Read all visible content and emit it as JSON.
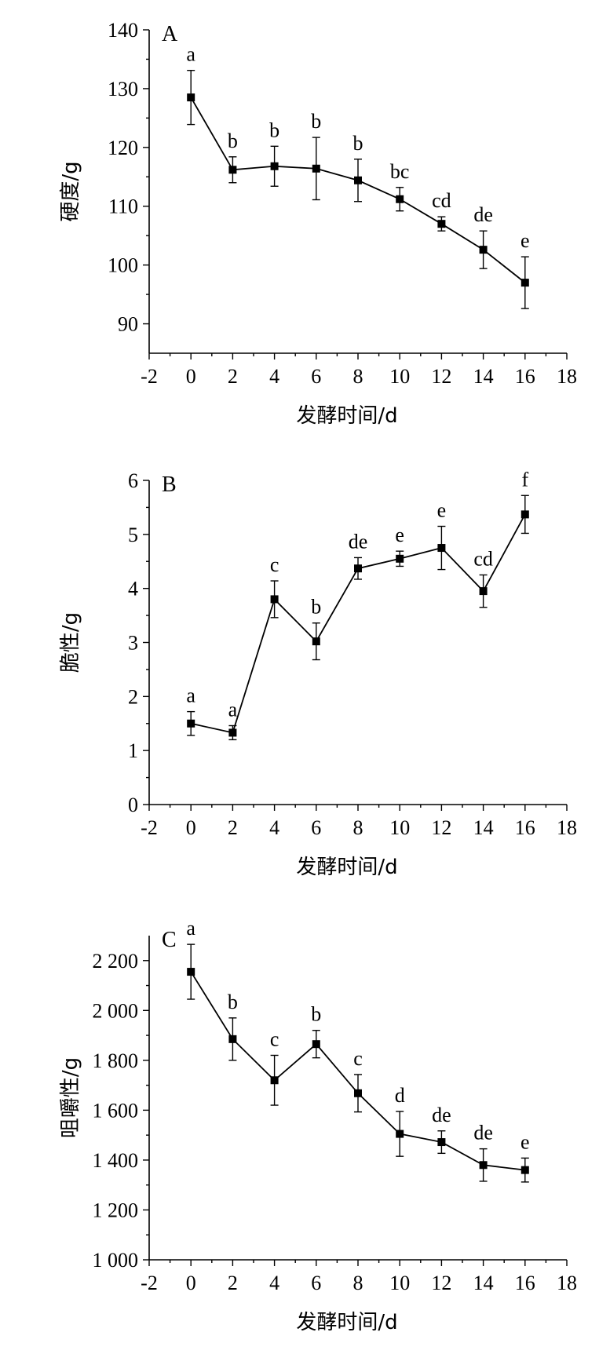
{
  "chart_data": [
    {
      "type": "line",
      "panel_label": "A",
      "xlabel": "发酵时间/d",
      "ylabel": "硬度/g",
      "xlim": [
        -2,
        18
      ],
      "ylim": [
        85,
        140
      ],
      "x_ticks": [
        -2,
        0,
        2,
        4,
        6,
        8,
        10,
        12,
        14,
        16,
        18
      ],
      "x_tick_labels": [
        "-2",
        "0",
        "2",
        "4",
        "6",
        "8",
        "10",
        "12",
        "14",
        "16",
        "18"
      ],
      "y_ticks": [
        90,
        100,
        110,
        120,
        130,
        140
      ],
      "y_tick_labels": [
        "90",
        "100",
        "110",
        "120",
        "130",
        "140"
      ],
      "grid": false,
      "series": [
        {
          "x": [
            0,
            2,
            4,
            6,
            8,
            10,
            12,
            14,
            16
          ],
          "values": [
            128.5,
            116.2,
            116.8,
            116.4,
            114.4,
            111.2,
            107.0,
            102.6,
            97.0
          ],
          "errors": [
            4.6,
            2.2,
            3.4,
            5.3,
            3.6,
            2.0,
            1.2,
            3.2,
            4.4
          ],
          "letters": [
            "a",
            "b",
            "b",
            "b",
            "b",
            "bc",
            "cd",
            "de",
            "e"
          ]
        }
      ]
    },
    {
      "type": "line",
      "panel_label": "B",
      "xlabel": "发酵时间/d",
      "ylabel": "脆性/g",
      "xlim": [
        -2,
        18
      ],
      "ylim": [
        0,
        6
      ],
      "x_ticks": [
        -2,
        0,
        2,
        4,
        6,
        8,
        10,
        12,
        14,
        16,
        18
      ],
      "x_tick_labels": [
        "-2",
        "0",
        "2",
        "4",
        "6",
        "8",
        "10",
        "12",
        "14",
        "16",
        "18"
      ],
      "y_ticks": [
        0,
        1,
        2,
        3,
        4,
        5,
        6
      ],
      "y_tick_labels": [
        "0",
        "1",
        "2",
        "3",
        "4",
        "5",
        "6"
      ],
      "grid": false,
      "series": [
        {
          "x": [
            0,
            2,
            4,
            6,
            8,
            10,
            12,
            14,
            16
          ],
          "values": [
            1.5,
            1.33,
            3.8,
            3.02,
            4.37,
            4.55,
            4.75,
            3.95,
            5.37
          ],
          "errors": [
            0.22,
            0.13,
            0.34,
            0.34,
            0.2,
            0.14,
            0.4,
            0.3,
            0.35
          ],
          "letters": [
            "a",
            "a",
            "c",
            "b",
            "de",
            "e",
            "e",
            "cd",
            "f"
          ]
        }
      ]
    },
    {
      "type": "line",
      "panel_label": "C",
      "xlabel": "发酵时间/d",
      "ylabel": "咀嚼性/g",
      "xlim": [
        -2,
        18
      ],
      "ylim": [
        1000,
        2300
      ],
      "x_ticks": [
        -2,
        0,
        2,
        4,
        6,
        8,
        10,
        12,
        14,
        16,
        18
      ],
      "x_tick_labels": [
        "-2",
        "0",
        "2",
        "4",
        "6",
        "8",
        "10",
        "12",
        "14",
        "16",
        "18"
      ],
      "y_ticks": [
        1000,
        1200,
        1400,
        1600,
        1800,
        2000,
        2200
      ],
      "y_tick_labels": [
        "1 000",
        "1 200",
        "1 400",
        "1 600",
        "1 800",
        "2 000",
        "2 200"
      ],
      "grid": false,
      "series": [
        {
          "x": [
            0,
            2,
            4,
            6,
            8,
            10,
            12,
            14,
            16
          ],
          "values": [
            2155,
            1885,
            1720,
            1865,
            1668,
            1505,
            1472,
            1380,
            1360
          ],
          "errors": [
            110,
            85,
            100,
            55,
            75,
            90,
            45,
            65,
            48
          ],
          "letters": [
            "a",
            "b",
            "c",
            "b",
            "c",
            "d",
            "de",
            "de",
            "e"
          ]
        }
      ]
    }
  ]
}
